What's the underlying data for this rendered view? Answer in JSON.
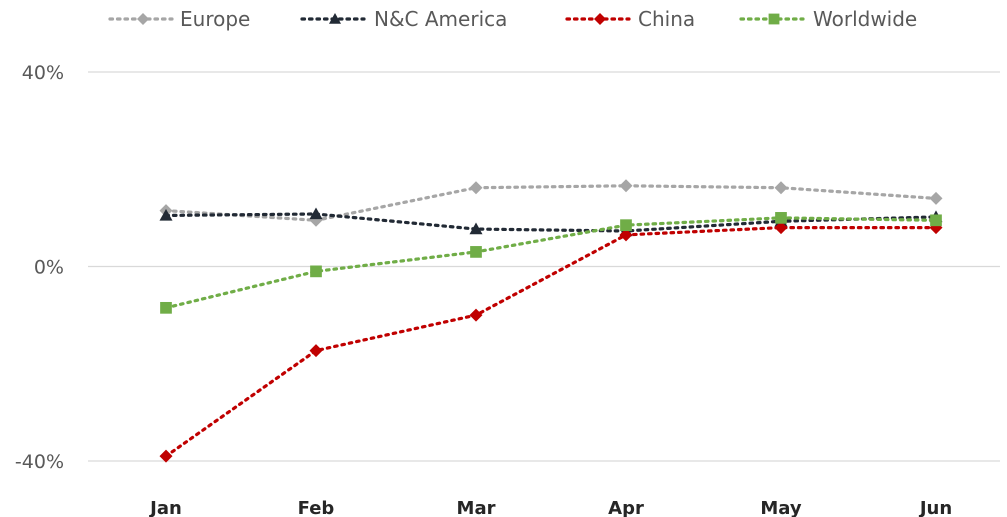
{
  "chart_data": {
    "type": "line",
    "categories": [
      "Jan",
      "Feb",
      "Mar",
      "Apr",
      "May",
      "Jun"
    ],
    "y_ticks": [
      "40%",
      "0%",
      "-40%"
    ],
    "y_tick_values": [
      40,
      0,
      -40
    ],
    "ylim": [
      -40,
      40
    ],
    "grid": true,
    "legend_position": "top",
    "series": [
      {
        "name": "Europe",
        "values": [
          11.5,
          9.5,
          16.2,
          16.6,
          16.2,
          14.0
        ],
        "color": "#A6A6A6",
        "marker": "diamond"
      },
      {
        "name": "N&C America",
        "values": [
          10.5,
          10.8,
          7.7,
          7.3,
          9.3,
          10.2
        ],
        "color": "#222A35",
        "marker": "triangle"
      },
      {
        "name": "China",
        "values": [
          -39.0,
          -17.3,
          -10.0,
          6.5,
          8.0,
          8.0
        ],
        "color": "#C00000",
        "marker": "diamond"
      },
      {
        "name": "Worldwide",
        "values": [
          -8.5,
          -1.0,
          3.0,
          8.5,
          10.0,
          9.5
        ],
        "color": "#70AD47",
        "marker": "square"
      }
    ]
  }
}
